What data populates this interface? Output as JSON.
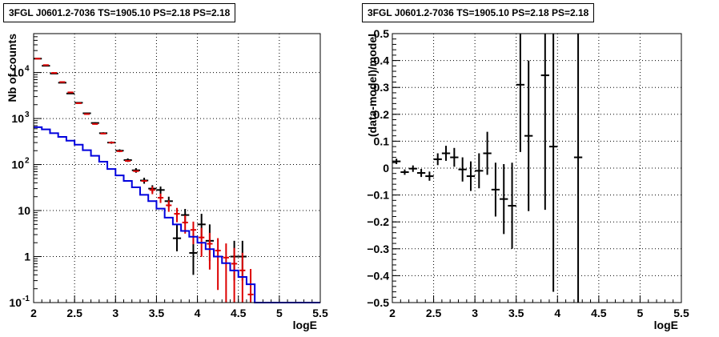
{
  "chart_data": [
    {
      "type": "histogram",
      "title": "3FGL J0601.2-7036 TS=1905.10 PS=2.18 PS=2.18",
      "xlabel": "logE",
      "ylabel": "Nb of counts",
      "xlim": [
        2,
        5.5
      ],
      "ylim": [
        0.1,
        70000
      ],
      "yscale": "log",
      "grid": true,
      "x_ticks": [
        "2",
        "2.5",
        "3",
        "3.5",
        "4",
        "4.5",
        "5",
        "5.5"
      ],
      "y_ticks": [
        {
          "value": 0.1,
          "label": "10",
          "exp": "-1"
        },
        {
          "value": 1,
          "label": "1",
          "exp": ""
        },
        {
          "value": 10,
          "label": "10",
          "exp": ""
        },
        {
          "value": 100,
          "label": "10",
          "exp": "2"
        },
        {
          "value": 1000,
          "label": "10",
          "exp": "3"
        },
        {
          "value": 10000,
          "label": "10",
          "exp": "4"
        }
      ],
      "series": [
        {
          "kind": "data",
          "color": "#000000",
          "bin_width": 0.1,
          "points": [
            {
              "x": 2.05,
              "y": 20000
            },
            {
              "x": 2.15,
              "y": 14000
            },
            {
              "x": 2.25,
              "y": 9500
            },
            {
              "x": 2.35,
              "y": 6000
            },
            {
              "x": 2.45,
              "y": 3500
            },
            {
              "x": 2.55,
              "y": 2200
            },
            {
              "x": 2.65,
              "y": 1300
            },
            {
              "x": 2.75,
              "y": 800
            },
            {
              "x": 2.85,
              "y": 480
            },
            {
              "x": 2.95,
              "y": 300
            },
            {
              "x": 3.05,
              "y": 200
            },
            {
              "x": 3.15,
              "y": 125
            },
            {
              "x": 3.25,
              "y": 75
            },
            {
              "x": 3.35,
              "y": 45
            },
            {
              "x": 3.45,
              "y": 30
            },
            {
              "x": 3.55,
              "y": 28
            },
            {
              "x": 3.65,
              "y": 16
            },
            {
              "x": 3.75,
              "y": 2.5,
              "lo": 1.3,
              "hi": 5
            },
            {
              "x": 3.85,
              "y": 8
            },
            {
              "x": 3.95,
              "y": 1.2,
              "lo": 0.4,
              "hi": 3.2
            },
            {
              "x": 4.05,
              "y": 5,
              "lo": 2.5,
              "hi": 8.5
            },
            {
              "x": 4.15,
              "y": 2.2,
              "lo": 0.8,
              "hi": 5
            },
            {
              "x": 4.45,
              "y": 1,
              "lo": 0.3,
              "hi": 2.2
            },
            {
              "x": 4.55,
              "y": 1,
              "lo": 0.3,
              "hi": 2.2
            }
          ]
        },
        {
          "kind": "model",
          "color": "#dd0000",
          "bin_width": 0.1,
          "points": [
            {
              "x": 2.05,
              "y": 20000
            },
            {
              "x": 2.15,
              "y": 14500
            },
            {
              "x": 2.25,
              "y": 9800
            },
            {
              "x": 2.35,
              "y": 6200
            },
            {
              "x": 2.45,
              "y": 3700
            },
            {
              "x": 2.55,
              "y": 2150
            },
            {
              "x": 2.65,
              "y": 1250
            },
            {
              "x": 2.75,
              "y": 760
            },
            {
              "x": 2.85,
              "y": 470
            },
            {
              "x": 2.95,
              "y": 300
            },
            {
              "x": 3.05,
              "y": 195
            },
            {
              "x": 3.15,
              "y": 120
            },
            {
              "x": 3.25,
              "y": 72
            },
            {
              "x": 3.35,
              "y": 44
            },
            {
              "x": 3.45,
              "y": 28
            },
            {
              "x": 3.55,
              "y": 19
            },
            {
              "x": 3.65,
              "y": 13
            },
            {
              "x": 3.75,
              "y": 8.5
            },
            {
              "x": 3.85,
              "y": 5.5
            },
            {
              "x": 3.95,
              "y": 3.8
            },
            {
              "x": 4.05,
              "y": 2.6
            },
            {
              "x": 4.15,
              "y": 1.9
            },
            {
              "x": 4.25,
              "y": 1.35
            },
            {
              "x": 4.35,
              "y": 0.95
            },
            {
              "x": 4.45,
              "y": 0.7
            },
            {
              "x": 4.55,
              "y": 0.5
            },
            {
              "x": 4.65,
              "y": 0.15
            }
          ]
        },
        {
          "kind": "step",
          "color": "#0000dd",
          "edges": [
            2.0,
            2.1,
            2.2,
            2.3,
            2.4,
            2.5,
            2.6,
            2.7,
            2.8,
            2.9,
            3.0,
            3.1,
            3.2,
            3.3,
            3.4,
            3.5,
            3.6,
            3.7,
            3.8,
            3.9,
            4.0,
            4.1,
            4.2,
            4.3,
            4.4,
            4.5,
            4.6,
            4.7,
            5.5
          ],
          "values": [
            650,
            580,
            480,
            400,
            330,
            270,
            205,
            155,
            115,
            80,
            58,
            44,
            32,
            22,
            16,
            11,
            7,
            5,
            3.6,
            2.7,
            2,
            1.45,
            1,
            0.72,
            0.5,
            0.36,
            0.25,
            0.1
          ]
        }
      ]
    },
    {
      "type": "scatter",
      "title": "3FGL J0601.2-7036 TS=1905.10 PS=2.18 PS=2.18",
      "xlabel": "logE",
      "ylabel": "(data-model)/model",
      "xlim": [
        2,
        5.5
      ],
      "ylim": [
        -0.5,
        0.5
      ],
      "grid": true,
      "x_ticks": [
        "2",
        "2.5",
        "3",
        "3.5",
        "4",
        "4.5",
        "5",
        "5.5"
      ],
      "y_ticks": [
        {
          "value": -0.5,
          "label": "−0.5"
        },
        {
          "value": -0.4,
          "label": "−0.4"
        },
        {
          "value": -0.3,
          "label": "−0.3"
        },
        {
          "value": -0.2,
          "label": "−0.2"
        },
        {
          "value": -0.1,
          "label": "−0.1"
        },
        {
          "value": 0,
          "label": "0"
        },
        {
          "value": 0.1,
          "label": "0.1"
        },
        {
          "value": 0.2,
          "label": "0.2"
        },
        {
          "value": 0.3,
          "label": "0.3"
        },
        {
          "value": 0.4,
          "label": "0.4"
        },
        {
          "value": 0.5,
          "label": "0.5"
        }
      ],
      "series": [
        {
          "kind": "residual",
          "color": "#000000",
          "bin_width": 0.1,
          "points": [
            {
              "x": 2.05,
              "y": 0.025,
              "err": 0.01
            },
            {
              "x": 2.15,
              "y": -0.015,
              "err": 0.01
            },
            {
              "x": 2.25,
              "y": -0.002,
              "err": 0.012
            },
            {
              "x": 2.35,
              "y": -0.018,
              "err": 0.015
            },
            {
              "x": 2.45,
              "y": -0.03,
              "err": 0.017
            },
            {
              "x": 2.55,
              "y": 0.033,
              "err": 0.022
            },
            {
              "x": 2.65,
              "y": 0.055,
              "err": 0.028
            },
            {
              "x": 2.75,
              "y": 0.04,
              "err": 0.035
            },
            {
              "x": 2.85,
              "y": -0.005,
              "err": 0.045
            },
            {
              "x": 2.95,
              "y": -0.03,
              "err": 0.055
            },
            {
              "x": 3.05,
              "y": -0.01,
              "err": 0.065
            },
            {
              "x": 3.15,
              "y": 0.055,
              "err": 0.08
            },
            {
              "x": 3.25,
              "y": -0.08,
              "err": 0.1
            },
            {
              "x": 3.35,
              "y": -0.115,
              "err": 0.13
            },
            {
              "x": 3.45,
              "y": -0.14,
              "err": 0.16
            },
            {
              "x": 3.55,
              "y": 0.31,
              "err": 0.25
            },
            {
              "x": 3.65,
              "y": 0.12,
              "err": 0.28
            },
            {
              "x": 3.85,
              "y": 0.345,
              "err": 0.5
            },
            {
              "x": 3.95,
              "y": 0.08,
              "err": 0.54
            },
            {
              "x": 4.25,
              "y": 0.04,
              "err": 0.7
            }
          ]
        }
      ]
    }
  ]
}
